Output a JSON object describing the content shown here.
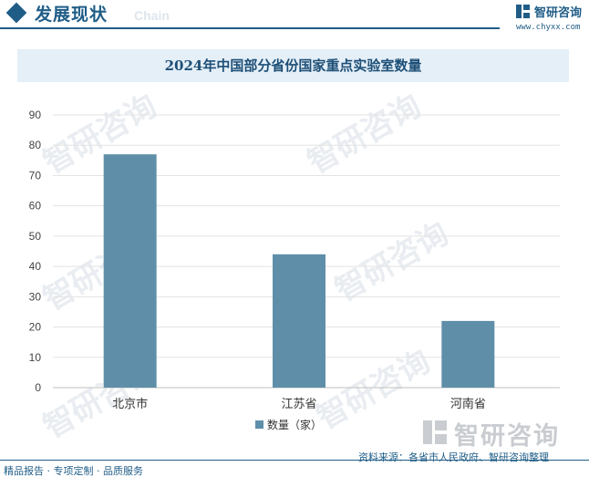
{
  "header": {
    "title": "发展现状",
    "subtitle_en": "Chain",
    "brand_name": "智研咨询",
    "brand_url": "www.chyxx.com",
    "accent_color": "#1f5d87"
  },
  "watermark": {
    "text": "智研咨询"
  },
  "chart_data": {
    "type": "bar",
    "title": "2024年中国部分省份国家重点实验室数量",
    "categories": [
      "北京市",
      "江苏省",
      "河南省"
    ],
    "series": [
      {
        "name": "数量（家）",
        "values": [
          77,
          44,
          22
        ],
        "color": "#5f8fa8"
      }
    ],
    "yticks": [
      "0",
      "10",
      "20",
      "30",
      "40",
      "50",
      "60",
      "70",
      "80",
      "90"
    ],
    "ylim": [
      0,
      90
    ],
    "grid": true,
    "legend_position": "bottom-center"
  },
  "footer": {
    "left": "精品报告 · 专项定制 · 品质服务",
    "source": "资料来源：各省市人民政府、智研咨询整理",
    "logo_text": "智研咨询"
  }
}
